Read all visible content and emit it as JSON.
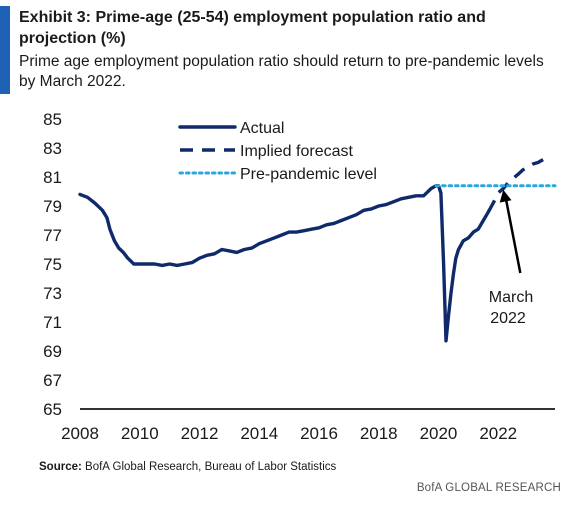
{
  "header": {
    "title": "Exhibit 3: Prime-age (25-54) employment population ratio and projection (%)",
    "subtitle": "Prime age employment population ratio should return to pre-pandemic levels by March 2022."
  },
  "footer": {
    "source_label": "Source:",
    "source_text": "BofA Global Research, Bureau of Labor Statistics",
    "brand": "BofA GLOBAL RESEARCH"
  },
  "colors": {
    "actual": "#0f2a6b",
    "forecast": "#0f2a6b",
    "pre_pandemic": "#29a8dc",
    "accent": "#1f62b5",
    "axis": "#333333",
    "annotation": "#000000"
  },
  "chart_data": {
    "type": "line",
    "title": "",
    "xlabel": "",
    "ylabel": "",
    "xlim": [
      2008,
      2023.9
    ],
    "ylim": [
      65,
      85
    ],
    "x_ticks": [
      "2008",
      "2010",
      "2012",
      "2014",
      "2016",
      "2018",
      "2020",
      "2022"
    ],
    "x_tick_values": [
      2008,
      2010,
      2012,
      2014,
      2016,
      2018,
      2020,
      2022
    ],
    "y_ticks": [
      "65",
      "67",
      "69",
      "71",
      "73",
      "75",
      "77",
      "79",
      "81",
      "83",
      "85"
    ],
    "y_tick_values": [
      65,
      67,
      69,
      71,
      73,
      75,
      77,
      79,
      81,
      83,
      85
    ],
    "grid": false,
    "legend_position": "top-center",
    "series": [
      {
        "name": "Actual",
        "style": "solid",
        "x": [
          2008.0,
          2008.25,
          2008.5,
          2008.75,
          2008.9,
          2009.0,
          2009.15,
          2009.3,
          2009.45,
          2009.6,
          2009.8,
          2010.0,
          2010.25,
          2010.5,
          2010.75,
          2011.0,
          2011.25,
          2011.5,
          2011.75,
          2012.0,
          2012.25,
          2012.5,
          2012.75,
          2013.0,
          2013.25,
          2013.5,
          2013.75,
          2014.0,
          2014.25,
          2014.5,
          2014.75,
          2015.0,
          2015.25,
          2015.5,
          2015.75,
          2016.0,
          2016.25,
          2016.5,
          2016.75,
          2017.0,
          2017.25,
          2017.5,
          2017.75,
          2018.0,
          2018.25,
          2018.5,
          2018.75,
          2019.0,
          2019.25,
          2019.5,
          2019.75,
          2019.92,
          2020.0,
          2020.08,
          2020.17,
          2020.25,
          2020.33,
          2020.42,
          2020.5,
          2020.58,
          2020.67,
          2020.75,
          2020.83,
          2021.0,
          2021.17,
          2021.33,
          2021.5,
          2021.67
        ],
        "values": [
          79.8,
          79.6,
          79.2,
          78.7,
          78.2,
          77.4,
          76.6,
          76.1,
          75.8,
          75.4,
          75.0,
          75.0,
          75.0,
          75.0,
          74.9,
          75.0,
          74.9,
          75.0,
          75.1,
          75.4,
          75.6,
          75.7,
          76.0,
          75.9,
          75.8,
          76.0,
          76.1,
          76.4,
          76.6,
          76.8,
          77.0,
          77.2,
          77.2,
          77.3,
          77.4,
          77.5,
          77.7,
          77.8,
          78.0,
          78.2,
          78.4,
          78.7,
          78.8,
          79.0,
          79.1,
          79.3,
          79.5,
          79.6,
          79.7,
          79.7,
          80.2,
          80.4,
          80.4,
          79.9,
          75.0,
          69.7,
          71.3,
          73.0,
          74.3,
          75.4,
          76.0,
          76.3,
          76.6,
          76.8,
          77.2,
          77.4,
          78.0,
          78.6
        ]
      },
      {
        "name": "Implied forecast",
        "style": "dashed",
        "x": [
          2021.67,
          2021.83,
          2022.0,
          2022.17,
          2022.33,
          2022.5,
          2022.67,
          2022.83,
          2023.0,
          2023.17,
          2023.33,
          2023.5
        ],
        "values": [
          78.6,
          79.2,
          79.9,
          80.2,
          80.6,
          80.9,
          81.2,
          81.5,
          81.7,
          81.9,
          82.0,
          82.2
        ]
      },
      {
        "name": "Pre-pandemic level",
        "style": "dotted",
        "x": [
          2019.92,
          2023.9
        ],
        "values": [
          80.4,
          80.4
        ]
      }
    ],
    "annotations": [
      {
        "text_line1": "March",
        "text_line2": "2022",
        "x": 2022.17,
        "y": 80.4
      }
    ]
  }
}
